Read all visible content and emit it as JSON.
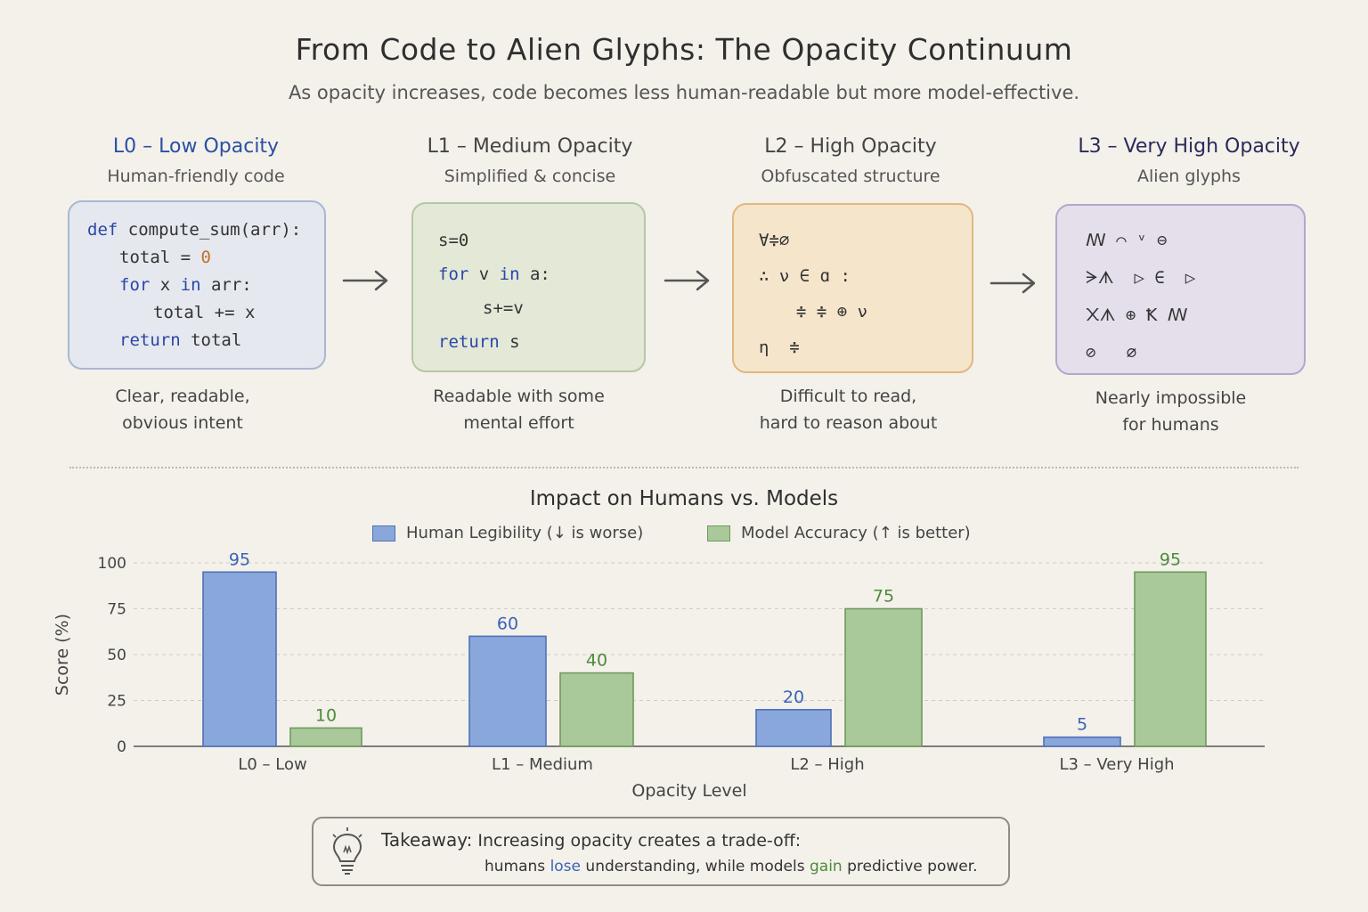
{
  "title": "From Code to Alien Glyphs: The Opacity Continuum",
  "subtitle": "As opacity increases, code becomes less human-readable but more model-effective.",
  "stages": [
    {
      "level": "L0 – Low Opacity",
      "desc": "Human-friendly code",
      "color": "#2c4fa3",
      "caption1": "Clear, readable,",
      "caption2": "obvious intent"
    },
    {
      "level": "L1 – Medium Opacity",
      "desc": "Simplified & concise",
      "color": "#444444",
      "caption1": "Readable with some",
      "caption2": "mental effort"
    },
    {
      "level": "L2 – High Opacity",
      "desc": "Obfuscated structure",
      "color": "#444444",
      "caption1": "Difficult to read,",
      "caption2": "hard to reason about"
    },
    {
      "level": "L3 – Very High Opacity",
      "desc": "Alien glyphs",
      "color": "#2a2a5a",
      "caption1": "Nearly impossible",
      "caption2": "for humans"
    }
  ],
  "code": {
    "l0": {
      "line1_kw": "def",
      "line1_rest": " compute_sum(arr):",
      "line2_rest": "total = ",
      "line2_num": "0",
      "line3_kw1": "for",
      "line3_mid": " x ",
      "line3_kw2": "in",
      "line3_rest": " arr:",
      "line4": "total += x",
      "line5_kw": "return",
      "line5_rest": " total"
    },
    "l1": {
      "line1": "s=0",
      "line2_kw1": "for",
      "line2_mid": " v ",
      "line2_kw2": "in",
      "line2_rest": " a:",
      "line3": "s+=v",
      "line4_kw": "return",
      "line4_rest": " s"
    },
    "l2": {
      "line1": "∀≑∅",
      "line2": "∴ ν ∈ ɑ :",
      "line3": "≑ ≑ ⊕ ν",
      "line4": "η  ≑"
    },
    "l3": {
      "line1": "ꟿ ⌒ ᵛ ⊖",
      "line2": "ᗒᗑ  ▷ ∈  ▷",
      "line3": "᙭ᗑ ⊕ Ꝁ ꟿ",
      "line4": "⊘   ⌀"
    }
  },
  "divider": "",
  "chart_data": {
    "type": "bar",
    "title": "Impact on Humans vs. Models",
    "xlabel": "Opacity Level",
    "ylabel": "Score (%)",
    "ylim": [
      0,
      100
    ],
    "yticks": [
      0,
      25,
      50,
      75,
      100
    ],
    "categories": [
      "L0 – Low",
      "L1 – Medium",
      "L2 – High",
      "L3 – Very High"
    ],
    "series": [
      {
        "name": "Human Legibility (↓ is worse)",
        "values": [
          95,
          60,
          20,
          5
        ],
        "color": "#8aa7dc",
        "stroke": "#4e72b8",
        "label_color": "#3a63b8"
      },
      {
        "name": "Model Accuracy (↑ is better)",
        "values": [
          10,
          40,
          75,
          95
        ],
        "color": "#a9c99a",
        "stroke": "#6e9a5e",
        "label_color": "#4f8a3c"
      }
    ],
    "grid": true,
    "legend": "top-center"
  },
  "takeaway": {
    "label": "Takeaway:",
    "line1": "Increasing opacity creates a trade-off:",
    "line2_a": "humans ",
    "line2_lose": "lose",
    "line2_b": " understanding, while models ",
    "line2_gain": "gain",
    "line2_c": " predictive power.",
    "icon": "lightbulb-icon"
  }
}
